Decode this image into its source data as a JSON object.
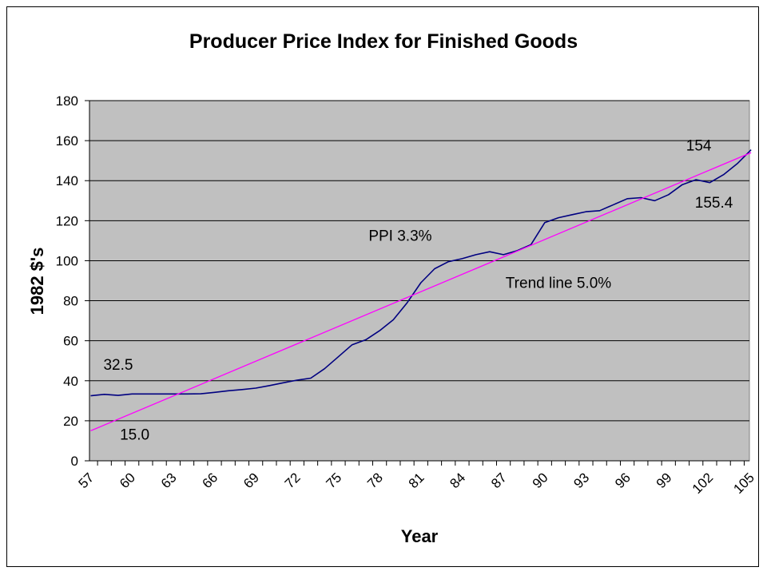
{
  "chart_data": {
    "type": "line",
    "title": "Producer Price Index for Finished Goods",
    "xlabel": "Year",
    "ylabel": "1982 $'s",
    "ylim": [
      0,
      180
    ],
    "yticks": [
      0,
      20,
      40,
      60,
      80,
      100,
      120,
      140,
      160,
      180
    ],
    "xlim": [
      57,
      105
    ],
    "xtick_labels": [
      "57",
      "60",
      "63",
      "66",
      "69",
      "72",
      "75",
      "78",
      "81",
      "84",
      "87",
      "90",
      "93",
      "96",
      "99",
      "102",
      "105"
    ],
    "grid": "horizontal",
    "colors": {
      "plot_bg": "#c0c0c0",
      "ppi": "#000080",
      "trend": "#ff00ff"
    },
    "series": [
      {
        "key": "ppi",
        "x": [
          57,
          58,
          59,
          60,
          61,
          62,
          63,
          64,
          65,
          66,
          67,
          68,
          69,
          70,
          71,
          72,
          73,
          74,
          75,
          76,
          77,
          78,
          79,
          80,
          81,
          82,
          83,
          84,
          85,
          86,
          87,
          88,
          89,
          90,
          91,
          92,
          93,
          94,
          95,
          96,
          97,
          98,
          99,
          100,
          101,
          102,
          103,
          104,
          105
        ],
        "values": [
          32.5,
          33.2,
          32.7,
          33.4,
          33.4,
          33.4,
          33.4,
          33.4,
          33.5,
          34.2,
          35.0,
          35.6,
          36.3,
          37.6,
          39.0,
          40.3,
          41.3,
          46.0,
          52.0,
          58.0,
          60.5,
          65.0,
          70.5,
          79.0,
          89.0,
          96.0,
          99.5,
          101.0,
          103.0,
          104.5,
          103.0,
          105.0,
          108.0,
          119.0,
          121.5,
          123.0,
          124.5,
          125.0,
          128.0,
          131.0,
          131.5,
          130.0,
          133.0,
          138.0,
          140.5,
          139.0,
          143.0,
          148.5,
          155.4
        ]
      },
      {
        "key": "trend",
        "x": [
          57,
          105
        ],
        "values": [
          15.0,
          154.0
        ]
      }
    ],
    "annotations": [
      {
        "id": "ppi-start",
        "text": "32.5",
        "x": 59.0,
        "y": 45.5
      },
      {
        "id": "trend-start",
        "text": "15.0",
        "x": 60.2,
        "y": 10.5
      },
      {
        "id": "ppi-rate",
        "text": "PPI 3.3%",
        "x": 79.5,
        "y": 110.0
      },
      {
        "id": "trend-rate",
        "text": "Trend line 5.0%",
        "x": 91.0,
        "y": 86.5
      },
      {
        "id": "trend-end",
        "text": "154",
        "x": 101.2,
        "y": 155.0
      },
      {
        "id": "ppi-end",
        "text": "155.4",
        "x": 102.3,
        "y": 126.5
      }
    ]
  }
}
